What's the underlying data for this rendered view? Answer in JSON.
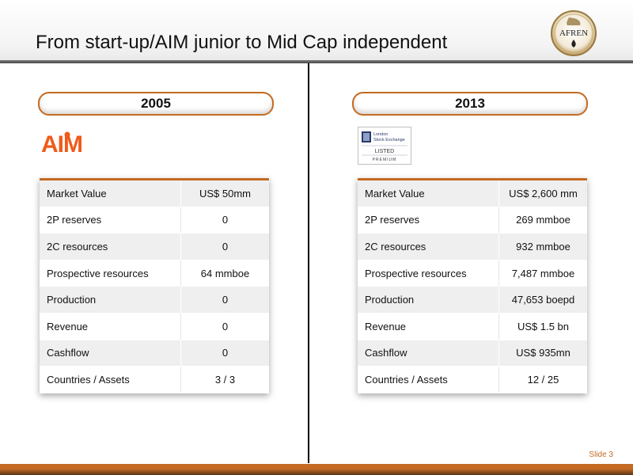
{
  "header": {
    "title": "From start-up/AIM junior to Mid Cap independent",
    "logo_text": "AFREN"
  },
  "left_panel": {
    "year": "2005",
    "logo_text": "AIM",
    "rows": [
      {
        "label": "Market Value",
        "value": "US$ 50mm"
      },
      {
        "label": "2P reserves",
        "value": "0"
      },
      {
        "label": "2C resources",
        "value": "0"
      },
      {
        "label": "Prospective resources",
        "value": "64 mmboe"
      },
      {
        "label": "Production",
        "value": "0"
      },
      {
        "label": "Revenue",
        "value": "0"
      },
      {
        "label": "Cashflow",
        "value": "0"
      },
      {
        "label": "Countries / Assets",
        "value": "3 / 3"
      }
    ]
  },
  "right_panel": {
    "year": "2013",
    "logo_lines": [
      "London",
      "Stock Exchange",
      "LISTED",
      "PREMIUM"
    ],
    "rows": [
      {
        "label": "Market Value",
        "value": "US$ 2,600 mm"
      },
      {
        "label": "2P reserves",
        "value": "269 mmboe"
      },
      {
        "label": "2C resources",
        "value": "932 mmboe"
      },
      {
        "label": "Prospective resources",
        "value": "7,487 mmboe"
      },
      {
        "label": "Production",
        "value": "47,653 boepd"
      },
      {
        "label": "Revenue",
        "value": "US$ 1.5 bn"
      },
      {
        "label": "Cashflow",
        "value": "US$ 935mn"
      },
      {
        "label": "Countries / Assets",
        "value": "12 / 25"
      }
    ]
  },
  "footer": {
    "slide_label": "Slide 3"
  },
  "colors": {
    "accent": "#c46a22",
    "aim_orange": "#f05a1a",
    "dark_rule": "#4a4a4a"
  }
}
